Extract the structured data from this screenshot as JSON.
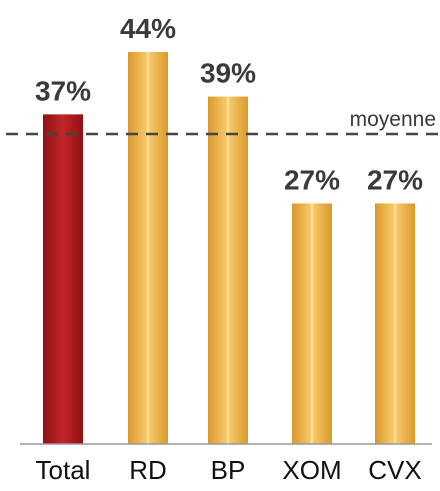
{
  "chart_data": {
    "type": "bar",
    "categories": [
      "Total",
      "RD",
      "BP",
      "XOM",
      "CVX"
    ],
    "values": [
      37,
      44,
      39,
      27,
      27
    ],
    "value_labels": [
      "37%",
      "44%",
      "39%",
      "27%",
      "27%"
    ],
    "highlight_index": 0,
    "colors": {
      "highlight": "#b01c1e",
      "bar": "#f0b24a",
      "reference_line": "#444444",
      "axis": "#999999"
    },
    "reference_line": {
      "value": 34.8,
      "label": "moyenne",
      "style": "dashed"
    },
    "ylim": [
      0,
      50
    ],
    "grid": false,
    "legend": false
  }
}
